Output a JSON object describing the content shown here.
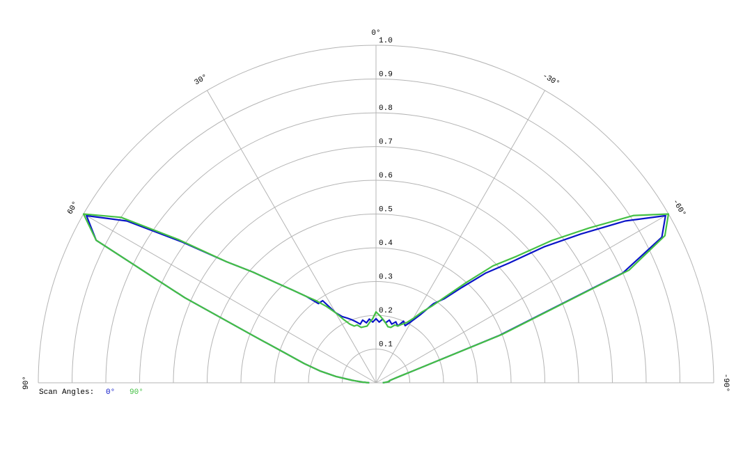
{
  "chart_data": {
    "type": "polar",
    "theta": [
      -90,
      -87,
      -84,
      -81,
      -78,
      -75,
      -72,
      -69,
      -66,
      -63,
      -60,
      -57,
      -54,
      -51,
      -48,
      -45,
      -42,
      -39,
      -36,
      -33,
      -30,
      -27,
      -24,
      -21,
      -18,
      -15,
      -12,
      -9,
      -6,
      -3,
      0,
      3,
      6,
      9,
      12,
      15,
      18,
      21,
      24,
      27,
      30,
      33,
      36,
      39,
      42,
      45,
      48,
      51,
      54,
      57,
      60,
      63,
      66,
      69,
      72,
      75,
      78,
      81,
      84,
      87,
      90
    ],
    "series": [
      {
        "name": "0°",
        "color": "#0a14c8",
        "values": [
          0.02,
          0.03,
          0.04,
          0.04,
          0.05,
          0.07,
          0.12,
          0.39,
          0.8,
          0.95,
          0.99,
          0.88,
          0.75,
          0.64,
          0.53,
          0.46,
          0.38,
          0.32,
          0.29,
          0.24,
          0.21,
          0.19,
          0.2,
          0.18,
          0.19,
          0.18,
          0.19,
          0.18,
          0.19,
          0.18,
          0.19,
          0.18,
          0.19,
          0.18,
          0.19,
          0.18,
          0.19,
          0.2,
          0.21,
          0.22,
          0.24,
          0.29,
          0.29,
          0.33,
          0.37,
          0.42,
          0.49,
          0.57,
          0.71,
          0.88,
          0.99,
          0.93,
          0.62,
          0.39,
          0.28,
          0.22,
          0.17,
          0.12,
          0.07,
          0.04,
          0.02
        ]
      },
      {
        "name": "90°",
        "color": "#44c044",
        "values": [
          0.02,
          0.03,
          0.04,
          0.04,
          0.05,
          0.07,
          0.12,
          0.4,
          0.82,
          0.96,
          1.0,
          0.91,
          0.78,
          0.67,
          0.56,
          0.49,
          0.4,
          0.33,
          0.28,
          0.25,
          0.22,
          0.2,
          0.19,
          0.18,
          0.18,
          0.17,
          0.17,
          0.18,
          0.19,
          0.2,
          0.21,
          0.19,
          0.18,
          0.17,
          0.17,
          0.17,
          0.18,
          0.18,
          0.19,
          0.21,
          0.24,
          0.27,
          0.3,
          0.33,
          0.37,
          0.42,
          0.49,
          0.57,
          0.72,
          0.9,
          1.0,
          0.93,
          0.62,
          0.39,
          0.28,
          0.22,
          0.17,
          0.12,
          0.07,
          0.04,
          0.02
        ]
      }
    ],
    "rlim": [
      0,
      1
    ],
    "rticks": [
      0.1,
      0.2,
      0.3,
      0.4,
      0.5,
      0.6,
      0.7,
      0.8,
      0.9,
      {
        "value": 1,
        "label": "1.0"
      }
    ],
    "thetaticks": [
      {
        "value": -90,
        "label": "-90°"
      },
      {
        "value": -60,
        "label": "-60°"
      },
      {
        "value": -30,
        "label": "-30°"
      },
      {
        "value": 0,
        "label": "0°"
      },
      {
        "value": 30,
        "label": "30°"
      },
      {
        "value": 60,
        "label": "60°"
      },
      {
        "value": 90,
        "label": "90°"
      }
    ],
    "legend_title": "Scan Angles:"
  }
}
